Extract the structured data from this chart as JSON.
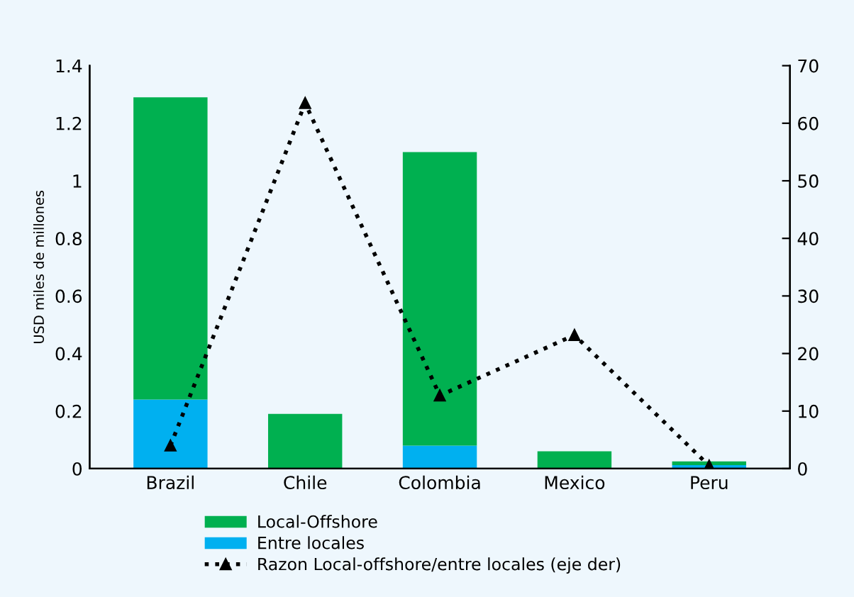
{
  "chart_data": {
    "type": "bar",
    "stacked": true,
    "ylabel": "USD miles de millones",
    "categories": [
      "Brazil",
      "Chile",
      "Colombia",
      "Mexico",
      "Peru"
    ],
    "series": [
      {
        "name": "Entre locales",
        "color": "#00b0f0",
        "values": [
          0.24,
          null,
          0.08,
          null,
          0.012
        ]
      },
      {
        "name": "Local-Offshore",
        "color": "#00b050",
        "values": [
          1.05,
          0.19,
          1.02,
          0.06,
          0.013
        ]
      },
      {
        "name": "Razon Local-offshore/entre locales (eje der)",
        "type": "line",
        "axis": "y2",
        "color": "#000000",
        "marker": "triangle",
        "line_style": "dotted",
        "values": [
          4,
          63.5,
          12.7,
          23.2,
          0.5
        ]
      }
    ],
    "ylim": [
      0,
      1.4
    ],
    "yticks": [
      0,
      0.2,
      0.4,
      0.6,
      0.8,
      1,
      1.2,
      1.4
    ],
    "y2lim": [
      0,
      70
    ],
    "y2ticks": [
      0,
      10,
      20,
      30,
      40,
      50,
      60,
      70
    ],
    "grid": false,
    "legend": "bottom"
  }
}
